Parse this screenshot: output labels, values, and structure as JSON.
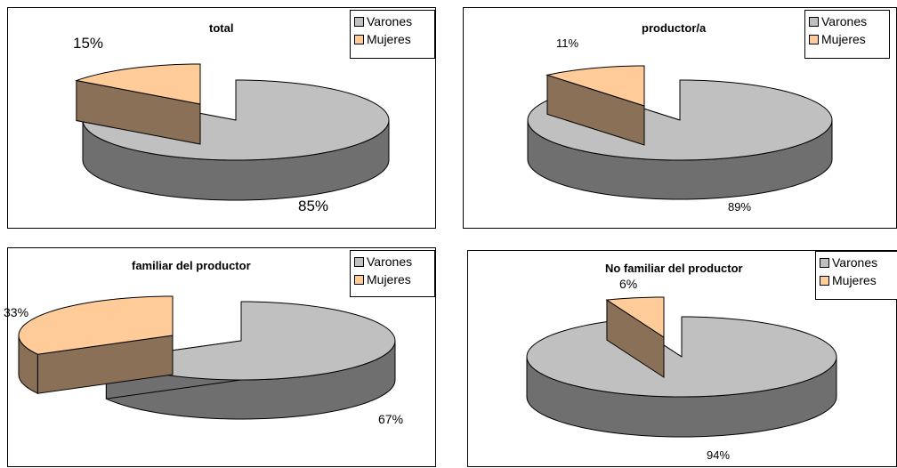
{
  "colors": {
    "varones_top": "#c0c0c0",
    "varones_side": "#6f6f6f",
    "mujeres_top": "#ffcc99",
    "mujeres_side": "#8a7056",
    "edge": "#000000"
  },
  "chart_data": [
    {
      "type": "pie",
      "title": "total",
      "legend": {
        "position": "top-right",
        "entries": [
          "Varones",
          "Mujeres"
        ]
      },
      "series": [
        {
          "values": [
            85,
            15
          ]
        }
      ],
      "categories": [
        "Varones",
        "Mujeres"
      ],
      "data_labels": [
        "85%",
        "15%"
      ]
    },
    {
      "type": "pie",
      "title": "productor/a",
      "legend": {
        "position": "top-right",
        "entries": [
          "Varones",
          "Mujeres"
        ]
      },
      "series": [
        {
          "values": [
            89,
            11
          ]
        }
      ],
      "categories": [
        "Varones",
        "Mujeres"
      ],
      "data_labels": [
        "89%",
        "11%"
      ]
    },
    {
      "type": "pie",
      "title": "familiar del productor",
      "legend": {
        "position": "top-right",
        "entries": [
          "Varones",
          "Mujeres"
        ]
      },
      "series": [
        {
          "values": [
            67,
            33
          ]
        }
      ],
      "categories": [
        "Varones",
        "Mujeres"
      ],
      "data_labels": [
        "67%",
        "33%"
      ]
    },
    {
      "type": "pie",
      "title": "No familiar del productor",
      "legend": {
        "position": "top-right",
        "entries": [
          "Varones",
          "Mujeres"
        ]
      },
      "series": [
        {
          "values": [
            94,
            6
          ]
        }
      ],
      "categories": [
        "Varones",
        "Mujeres"
      ],
      "data_labels": [
        "94%",
        "6%"
      ]
    }
  ]
}
